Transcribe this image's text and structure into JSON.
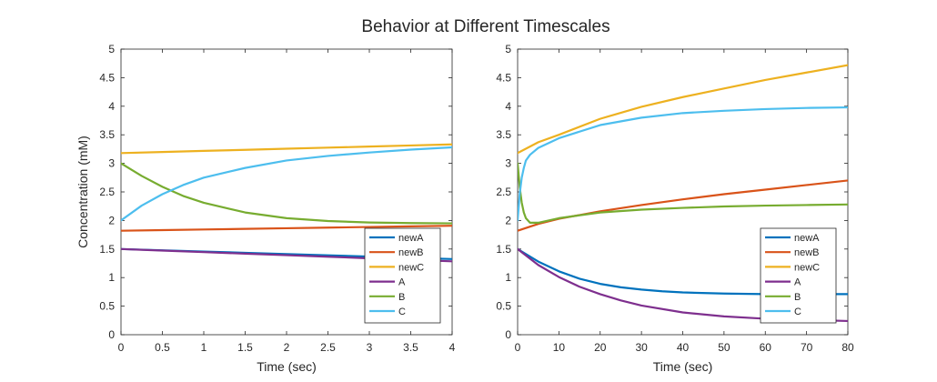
{
  "figure": {
    "title": "Behavior at Different Timescales"
  },
  "colors": {
    "newA": "#0072BD",
    "newB": "#D95319",
    "newC": "#EDB120",
    "A": "#7E2F8E",
    "B": "#77AC30",
    "C": "#4DBEEE",
    "axis": "#262626",
    "background": "#ffffff"
  },
  "chart_data": [
    {
      "type": "line",
      "xlabel": "Time (sec)",
      "ylabel": "Concentration (mM)",
      "xlim": [
        0,
        4
      ],
      "ylim": [
        0,
        5
      ],
      "xticks": [
        0,
        0.5,
        1,
        1.5,
        2,
        2.5,
        3,
        3.5,
        4
      ],
      "yticks": [
        0,
        0.5,
        1,
        1.5,
        2,
        2.5,
        3,
        3.5,
        4,
        4.5,
        5
      ],
      "grid": false,
      "legend_position": "bottom-right",
      "series": [
        {
          "name": "newA",
          "color": "#0072BD",
          "x": [
            0,
            0.5,
            1,
            1.5,
            2,
            2.5,
            3,
            3.5,
            4
          ],
          "y": [
            1.5,
            1.478,
            1.456,
            1.434,
            1.412,
            1.39,
            1.368,
            1.346,
            1.325
          ]
        },
        {
          "name": "newB",
          "color": "#D95319",
          "x": [
            0,
            0.5,
            1,
            1.5,
            2,
            2.5,
            3,
            3.5,
            4
          ],
          "y": [
            1.82,
            1.831,
            1.842,
            1.853,
            1.864,
            1.875,
            1.886,
            1.897,
            1.908
          ]
        },
        {
          "name": "newC",
          "color": "#EDB120",
          "x": [
            0,
            0.5,
            1,
            1.5,
            2,
            2.5,
            3,
            3.5,
            4
          ],
          "y": [
            3.18,
            3.199,
            3.218,
            3.237,
            3.256,
            3.275,
            3.294,
            3.313,
            3.332
          ]
        },
        {
          "name": "A",
          "color": "#7E2F8E",
          "x": [
            0,
            0.5,
            1,
            1.5,
            2,
            2.5,
            3,
            3.5,
            4
          ],
          "y": [
            1.5,
            1.473,
            1.446,
            1.419,
            1.392,
            1.365,
            1.338,
            1.311,
            1.285
          ]
        },
        {
          "name": "B",
          "color": "#77AC30",
          "x": [
            0,
            0.25,
            0.5,
            0.75,
            1,
            1.5,
            2,
            2.5,
            3,
            3.5,
            4
          ],
          "y": [
            3.0,
            2.78,
            2.59,
            2.43,
            2.31,
            2.14,
            2.04,
            1.99,
            1.965,
            1.955,
            1.95
          ]
        },
        {
          "name": "C",
          "color": "#4DBEEE",
          "x": [
            0,
            0.25,
            0.5,
            0.75,
            1,
            1.5,
            2,
            2.5,
            3,
            3.5,
            4
          ],
          "y": [
            2.0,
            2.26,
            2.46,
            2.62,
            2.75,
            2.92,
            3.05,
            3.13,
            3.19,
            3.24,
            3.28
          ]
        }
      ]
    },
    {
      "type": "line",
      "xlabel": "Time (sec)",
      "ylabel": "",
      "xlim": [
        0,
        80
      ],
      "ylim": [
        0,
        5
      ],
      "xticks": [
        0,
        10,
        20,
        30,
        40,
        50,
        60,
        70,
        80
      ],
      "yticks": [
        0,
        0.5,
        1,
        1.5,
        2,
        2.5,
        3,
        3.5,
        4,
        4.5,
        5
      ],
      "grid": false,
      "legend_position": "bottom-right",
      "series": [
        {
          "name": "newA",
          "color": "#0072BD",
          "x": [
            0,
            5,
            10,
            15,
            20,
            25,
            30,
            35,
            40,
            50,
            60,
            70,
            80
          ],
          "y": [
            1.5,
            1.28,
            1.11,
            0.98,
            0.89,
            0.83,
            0.79,
            0.76,
            0.74,
            0.72,
            0.71,
            0.71,
            0.71
          ]
        },
        {
          "name": "newB",
          "color": "#D95319",
          "x": [
            0,
            5,
            10,
            20,
            30,
            40,
            50,
            60,
            70,
            80
          ],
          "y": [
            1.82,
            1.94,
            2.03,
            2.16,
            2.27,
            2.37,
            2.46,
            2.54,
            2.62,
            2.7
          ]
        },
        {
          "name": "newC",
          "color": "#EDB120",
          "x": [
            0,
            5,
            10,
            20,
            30,
            40,
            50,
            60,
            70,
            80
          ],
          "y": [
            3.18,
            3.37,
            3.5,
            3.78,
            3.99,
            4.16,
            4.31,
            4.46,
            4.59,
            4.72
          ]
        },
        {
          "name": "A",
          "color": "#7E2F8E",
          "x": [
            0,
            5,
            10,
            15,
            20,
            25,
            30,
            40,
            50,
            60,
            70,
            80
          ],
          "y": [
            1.5,
            1.22,
            1.01,
            0.84,
            0.71,
            0.6,
            0.51,
            0.39,
            0.32,
            0.28,
            0.26,
            0.24
          ]
        },
        {
          "name": "B",
          "color": "#77AC30",
          "x": [
            0,
            0.5,
            1,
            1.5,
            2,
            3,
            5,
            10,
            20,
            30,
            40,
            50,
            60,
            70,
            80
          ],
          "y": [
            3.0,
            2.59,
            2.31,
            2.14,
            2.04,
            1.96,
            1.96,
            2.04,
            2.14,
            2.19,
            2.22,
            2.245,
            2.26,
            2.27,
            2.28
          ]
        },
        {
          "name": "C",
          "color": "#4DBEEE",
          "x": [
            0,
            0.5,
            1,
            1.5,
            2,
            3,
            5,
            10,
            20,
            30,
            40,
            50,
            60,
            70,
            80
          ],
          "y": [
            2.0,
            2.46,
            2.75,
            2.92,
            3.05,
            3.15,
            3.27,
            3.44,
            3.67,
            3.8,
            3.88,
            3.92,
            3.95,
            3.97,
            3.98
          ]
        }
      ]
    }
  ]
}
